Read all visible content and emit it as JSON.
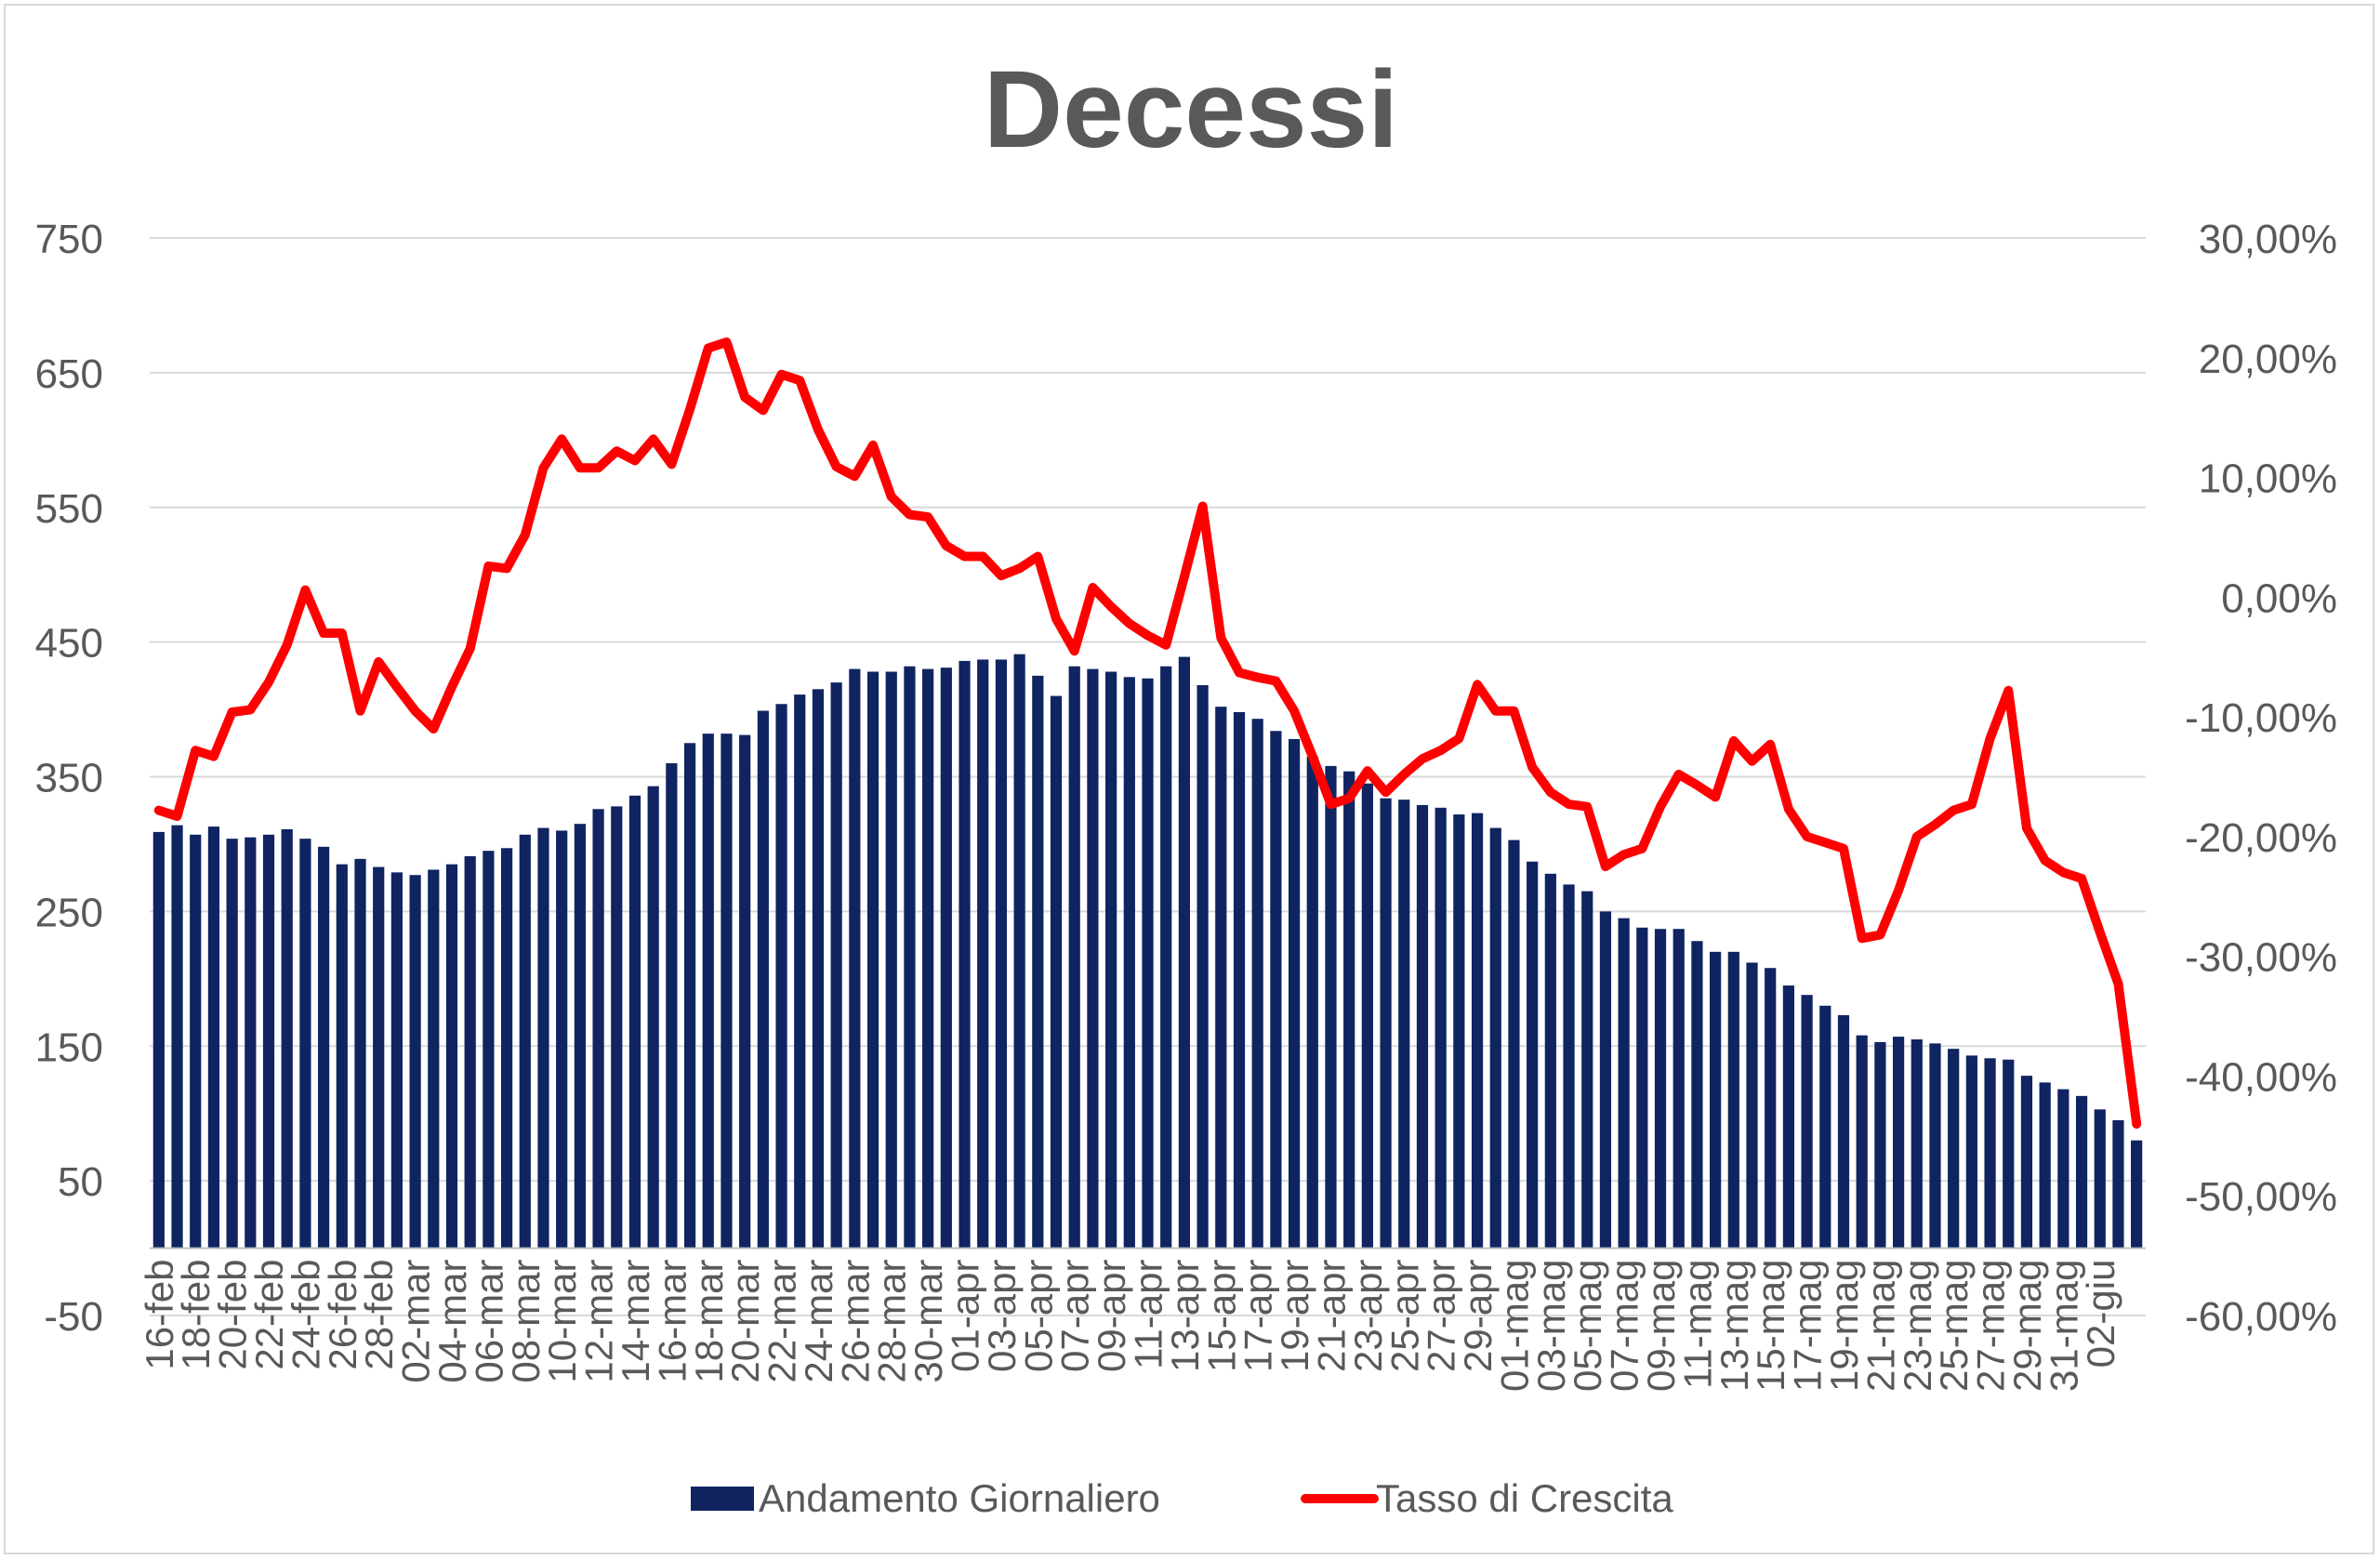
{
  "chart_data": {
    "type": "bar",
    "title": "Decessi",
    "xlabel": "",
    "ylabel": "",
    "y2label": "",
    "ylim": [
      -50,
      750
    ],
    "y_ticks": [
      -50,
      50,
      150,
      250,
      350,
      450,
      550,
      650,
      750
    ],
    "y2lim": [
      -0.6,
      0.3
    ],
    "y2_ticks": [
      "-60,00%",
      "-50,00%",
      "-40,00%",
      "-30,00%",
      "-20,00%",
      "-10,00%",
      "0,00%",
      "10,00%",
      "20,00%",
      "30,00%"
    ],
    "grid": true,
    "legend_position": "bottom",
    "x_tick_labels": [
      "16-feb",
      "18-feb",
      "20-feb",
      "22-feb",
      "24-feb",
      "26-feb",
      "28-feb",
      "02-mar",
      "04-mar",
      "06-mar",
      "08-mar",
      "10-mar",
      "12-mar",
      "14-mar",
      "16-mar",
      "18-mar",
      "20-mar",
      "22-mar",
      "24-mar",
      "26-mar",
      "28-mar",
      "30-mar",
      "01-apr",
      "03-apr",
      "05-apr",
      "07-apr",
      "09-apr",
      "11-apr",
      "13-apr",
      "15-apr",
      "17-apr",
      "19-apr",
      "21-apr",
      "23-apr",
      "25-apr",
      "27-apr",
      "29-apr",
      "01-mag",
      "03-mag",
      "05-mag",
      "07-mag",
      "09-mag",
      "11-mag",
      "13-mag",
      "15-mag",
      "17-mag",
      "19-mag",
      "21-mag",
      "23-mag",
      "25-mag",
      "27-mag",
      "29-mag",
      "31-mag",
      "02-giu"
    ],
    "series": [
      {
        "name": "Andamento Giornaliero",
        "type": "bar",
        "axis": "left",
        "color": "#0f2461",
        "values": [
          309,
          314,
          307,
          313,
          304,
          305,
          307,
          311,
          304,
          298,
          285,
          289,
          283,
          279,
          277,
          281,
          285,
          291,
          295,
          297,
          307,
          312,
          310,
          315,
          326,
          328,
          336,
          343,
          360,
          375,
          382,
          382,
          381,
          399,
          404,
          411,
          415,
          420,
          430,
          428,
          428,
          432,
          430,
          431,
          436,
          437,
          437,
          441,
          425,
          410,
          432,
          430,
          428,
          424,
          423,
          432,
          439,
          418,
          402,
          398,
          393,
          384,
          378,
          365,
          358,
          354,
          345,
          334,
          333,
          329,
          327,
          322,
          323,
          312,
          303,
          287,
          278,
          270,
          265,
          250,
          245,
          238,
          237,
          237,
          228,
          220,
          220,
          212,
          208,
          195,
          188,
          180,
          173,
          158,
          153,
          157,
          155,
          152,
          148,
          143,
          141,
          140,
          128,
          123,
          118,
          113,
          103,
          95,
          80
        ]
      },
      {
        "name": "Tasso di Crescita",
        "type": "line",
        "axis": "right",
        "color": "#ff0000",
        "values": [
          -0.178,
          -0.183,
          -0.128,
          -0.133,
          -0.096,
          -0.094,
          -0.071,
          -0.04,
          0.006,
          -0.03,
          -0.03,
          -0.095,
          -0.054,
          -0.075,
          -0.095,
          -0.11,
          -0.075,
          -0.043,
          0.026,
          0.024,
          0.052,
          0.108,
          0.132,
          0.108,
          0.108,
          0.122,
          0.114,
          0.132,
          0.111,
          0.157,
          0.208,
          0.213,
          0.167,
          0.156,
          0.186,
          0.181,
          0.14,
          0.109,
          0.101,
          0.127,
          0.084,
          0.069,
          0.067,
          0.043,
          0.034,
          0.034,
          0.018,
          0.024,
          0.034,
          -0.018,
          -0.045,
          0.008,
          -0.008,
          -0.022,
          -0.032,
          -0.04,
          0.017,
          0.076,
          -0.034,
          -0.063,
          -0.067,
          -0.07,
          -0.095,
          -0.133,
          -0.173,
          -0.168,
          -0.145,
          -0.163,
          -0.148,
          -0.135,
          -0.128,
          -0.118,
          -0.073,
          -0.095,
          -0.095,
          -0.142,
          -0.163,
          -0.173,
          -0.175,
          -0.225,
          -0.215,
          -0.21,
          -0.175,
          -0.148,
          -0.157,
          -0.167,
          -0.12,
          -0.137,
          -0.123,
          -0.177,
          -0.2,
          -0.205,
          -0.21,
          -0.285,
          -0.282,
          -0.245,
          -0.2,
          -0.19,
          -0.178,
          -0.173,
          -0.118,
          -0.078,
          -0.193,
          -0.22,
          -0.23,
          -0.235,
          -0.28,
          -0.323,
          -0.44
        ]
      }
    ]
  }
}
